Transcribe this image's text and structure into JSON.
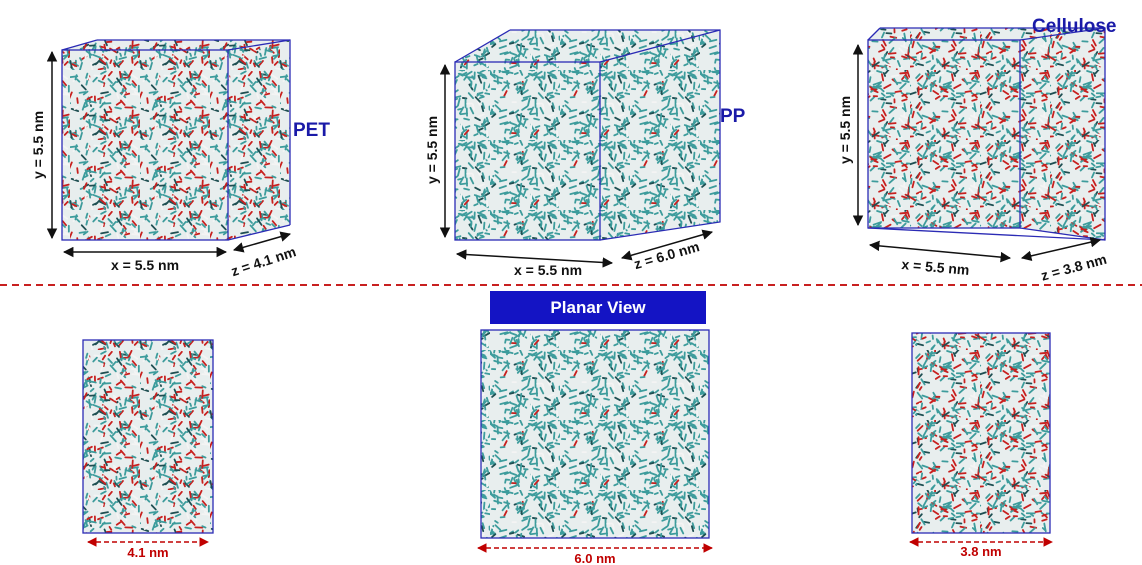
{
  "panels": [
    {
      "label": "PET",
      "y_dim": "y = 5.5 nm",
      "x_dim": "x = 5.5 nm",
      "z_dim": "z = 4.1 nm",
      "planar_width": "4.1 nm"
    },
    {
      "label": "PP",
      "y_dim": "y = 5.5 nm",
      "x_dim": "x = 5.5 nm",
      "z_dim": "z = 6.0 nm",
      "planar_width": "6.0 nm"
    },
    {
      "label": "Cellulose",
      "y_dim": "y = 5.5 nm",
      "x_dim": "x = 5.5 nm",
      "z_dim": "z = 3.8 nm",
      "planar_width": "3.8 nm"
    }
  ],
  "planar_view_label": "Planar View"
}
